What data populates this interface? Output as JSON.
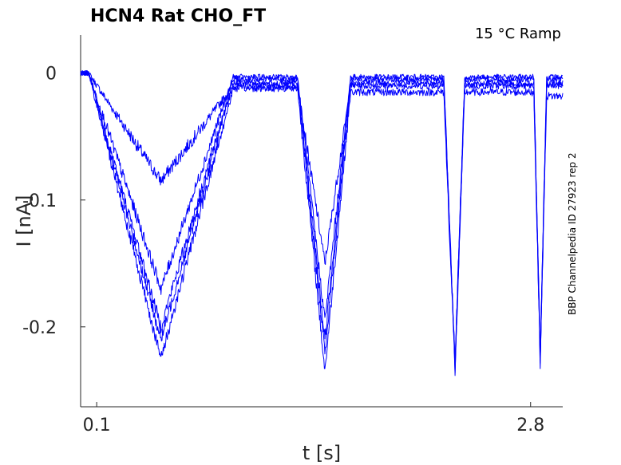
{
  "chart_data": {
    "type": "line",
    "title": "HCN4  Rat  CHO_FT",
    "annotation": "15 °C  Ramp",
    "side_label": "BBP Channelpedia ID 27923 rep 2",
    "xlabel": "t [s]",
    "ylabel": "I [nA]",
    "xlim": [
      0.0,
      3.0
    ],
    "ylim": [
      -0.263,
      0.03
    ],
    "x_ticks": [
      0.1,
      2.8
    ],
    "x_tick_labels": [
      "0.1",
      "2.8"
    ],
    "y_ticks": [
      0,
      -0.1,
      -0.2
    ],
    "y_tick_labels": [
      "0",
      "-0.1",
      "-0.2"
    ],
    "grid": false,
    "line_color": "#0000ff",
    "trace_shape_x": [
      0.0,
      0.05,
      0.5,
      0.95,
      1.2,
      1.35,
      1.52,
      1.68,
      1.75,
      2.2,
      2.26,
      2.33,
      2.39,
      2.45,
      2.82,
      2.86,
      2.9,
      2.94,
      3.0
    ],
    "series": [
      {
        "values": [
          0.0,
          0.0,
          -0.085,
          -0.01,
          -0.01,
          -0.01,
          -0.15,
          -0.01,
          -0.01,
          -0.01,
          -0.01,
          -0.23,
          -0.01,
          -0.01,
          -0.01,
          -0.22,
          -0.01,
          -0.01,
          -0.01
        ]
      },
      {
        "values": [
          0.0,
          0.0,
          -0.17,
          -0.003,
          -0.003,
          -0.003,
          -0.195,
          -0.003,
          -0.003,
          -0.003,
          -0.003,
          -0.228,
          -0.003,
          -0.003,
          -0.003,
          -0.222,
          -0.003,
          -0.003,
          -0.003
        ]
      },
      {
        "values": [
          0.0,
          0.0,
          -0.2,
          -0.005,
          -0.005,
          -0.005,
          -0.21,
          -0.005,
          -0.005,
          -0.005,
          -0.005,
          -0.23,
          -0.005,
          -0.005,
          -0.005,
          -0.225,
          -0.005,
          -0.005,
          -0.005
        ]
      },
      {
        "values": [
          0.0,
          0.0,
          -0.21,
          -0.008,
          -0.008,
          -0.008,
          -0.22,
          -0.008,
          -0.008,
          -0.008,
          -0.008,
          -0.232,
          -0.008,
          -0.008,
          -0.008,
          -0.226,
          -0.008,
          -0.008,
          -0.008
        ]
      },
      {
        "values": [
          0.0,
          0.0,
          -0.225,
          -0.012,
          -0.012,
          -0.012,
          -0.235,
          -0.015,
          -0.015,
          -0.015,
          -0.015,
          -0.235,
          -0.015,
          -0.015,
          -0.015,
          -0.228,
          -0.018,
          -0.018,
          -0.018
        ]
      }
    ]
  }
}
